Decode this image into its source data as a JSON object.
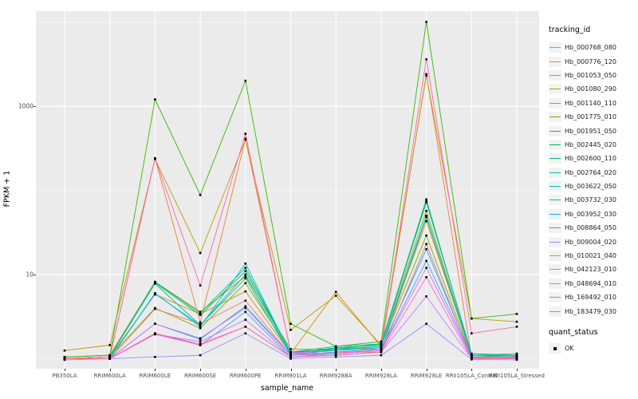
{
  "chart_data": {
    "type": "line",
    "title": "",
    "xlabel": "sample_name",
    "ylabel": "FPKM + 1",
    "y_scale": "log10",
    "grid": true,
    "panel_background": "#EBEBEB",
    "gridline_color": "#FFFFFF",
    "point_marker": "black-square",
    "legend_position": "right",
    "y_ticks": [
      {
        "label": "1000",
        "value": 1000
      },
      {
        "label": "10",
        "value": 10
      }
    ],
    "y_minor_gridlines": [
      1,
      100,
      10000
    ],
    "ylim": [
      0.76,
      13400
    ],
    "categories": [
      "PB350LA",
      "RRIM600LA",
      "RRIM600LE",
      "RRIM600SE",
      "RRIM600PE",
      "RRIM901LA",
      "RRIM928BA",
      "RRIM928LA",
      "RRIM928LE",
      "RRII105LA_Control",
      "RRII105LA_Stressed"
    ],
    "legend_title": "tracking_id",
    "quant_legend_title": "quant_status",
    "quant_legend_items": [
      {
        "label": "OK",
        "marker": "black-square"
      }
    ],
    "series": [
      {
        "name": "Hb_000768_080",
        "color": "#F8766D",
        "values": [
          1.0,
          1.0,
          3.9,
          2.6,
          4.9,
          1.1,
          1.2,
          1.2,
          49,
          1.05,
          1.05
        ]
      },
      {
        "name": "Hb_000776_120",
        "color": "#EA8331",
        "values": [
          1.0,
          1.05,
          240,
          2.7,
          410,
          1.2,
          1.3,
          1.3,
          2400,
          1.05,
          1.05
        ]
      },
      {
        "name": "Hb_001053_050",
        "color": "#D89000",
        "values": [
          1.0,
          1.05,
          5.8,
          3.4,
          6.3,
          1.15,
          6.2,
          1.4,
          43,
          1.1,
          1.1
        ]
      },
      {
        "name": "Hb_001080_290",
        "color": "#C09B00",
        "values": [
          1.25,
          1.45,
          235,
          18,
          400,
          2.2,
          5.6,
          1.45,
          2300,
          3.0,
          2.75
        ]
      },
      {
        "name": "Hb_001140_110",
        "color": "#A3A500",
        "values": [
          1.05,
          1.1,
          8.2,
          3.6,
          9.5,
          1.3,
          1.3,
          1.5,
          57,
          1.1,
          1.15
        ]
      },
      {
        "name": "Hb_001775_010",
        "color": "#7CAE00",
        "values": [
          1.0,
          1.05,
          4.0,
          2.3,
          7.9,
          1.2,
          1.25,
          1.4,
          29,
          1.05,
          1.1
        ]
      },
      {
        "name": "Hb_001951_050",
        "color": "#39B600",
        "values": [
          1.05,
          1.1,
          1200,
          88,
          2000,
          2.6,
          1.4,
          1.6,
          10000,
          3.0,
          3.4
        ]
      },
      {
        "name": "Hb_002445_020",
        "color": "#00BB4E",
        "values": [
          1.0,
          1.05,
          8.0,
          3.3,
          11,
          1.2,
          1.3,
          1.5,
          78,
          1.1,
          1.1
        ]
      },
      {
        "name": "Hb_002600_110",
        "color": "#00BF7D",
        "values": [
          1.0,
          1.05,
          7.8,
          2.5,
          10,
          1.15,
          1.35,
          1.45,
          75,
          1.1,
          1.1
        ]
      },
      {
        "name": "Hb_002764_020",
        "color": "#00C1A3",
        "values": [
          1.0,
          1.05,
          8.1,
          3.5,
          12,
          1.2,
          1.4,
          1.5,
          72,
          1.15,
          1.1
        ]
      },
      {
        "name": "Hb_003622_050",
        "color": "#00BFC4",
        "values": [
          1.0,
          1.0,
          5.9,
          2.5,
          9.0,
          1.1,
          1.3,
          1.4,
          50,
          1.1,
          1.1
        ]
      },
      {
        "name": "Hb_003732_030",
        "color": "#00BAE0",
        "values": [
          1.0,
          1.0,
          6.0,
          2.4,
          13.5,
          1.15,
          1.25,
          1.35,
          48,
          1.1,
          1.08
        ]
      },
      {
        "name": "Hb_003952_030",
        "color": "#00B0F6",
        "values": [
          1.0,
          1.0,
          2.6,
          1.7,
          4.2,
          1.1,
          1.2,
          1.3,
          20,
          1.05,
          1.05
        ]
      },
      {
        "name": "Hb_008864_050",
        "color": "#35A2FF",
        "values": [
          1.0,
          1.0,
          2.0,
          1.45,
          3.6,
          1.05,
          1.15,
          1.25,
          14.5,
          1.05,
          1.05
        ]
      },
      {
        "name": "Hb_009004_020",
        "color": "#9590FF",
        "values": [
          0.97,
          1.0,
          1.05,
          1.1,
          2.0,
          1.0,
          1.05,
          1.1,
          2.6,
          0.98,
          0.97
        ]
      },
      {
        "name": "Hb_010021_040",
        "color": "#C77CFF",
        "values": [
          1.0,
          1.0,
          1.95,
          1.6,
          2.9,
          1.05,
          1.1,
          1.2,
          5.5,
          1.0,
          1.0
        ]
      },
      {
        "name": "Hb_042123_010",
        "color": "#E76BF3",
        "values": [
          1.0,
          1.0,
          2.6,
          1.75,
          4.0,
          1.1,
          1.15,
          1.25,
          12,
          1.02,
          1.02
        ]
      },
      {
        "name": "Hb_048694_010",
        "color": "#FA62DB",
        "values": [
          1.0,
          1.0,
          1.95,
          1.45,
          2.4,
          1.05,
          1.1,
          1.2,
          9.3,
          1.0,
          1.0
        ]
      },
      {
        "name": "Hb_169492_010",
        "color": "#FF62BC",
        "values": [
          1.0,
          1.05,
          240,
          7.4,
          470,
          1.2,
          1.15,
          1.3,
          3600,
          2.0,
          2.4
        ]
      },
      {
        "name": "Hb_183479_030",
        "color": "#FF6A98",
        "values": [
          1.0,
          1.0,
          2.0,
          1.5,
          2.4,
          1.05,
          1.1,
          1.2,
          23,
          1.0,
          1.0
        ]
      }
    ]
  }
}
